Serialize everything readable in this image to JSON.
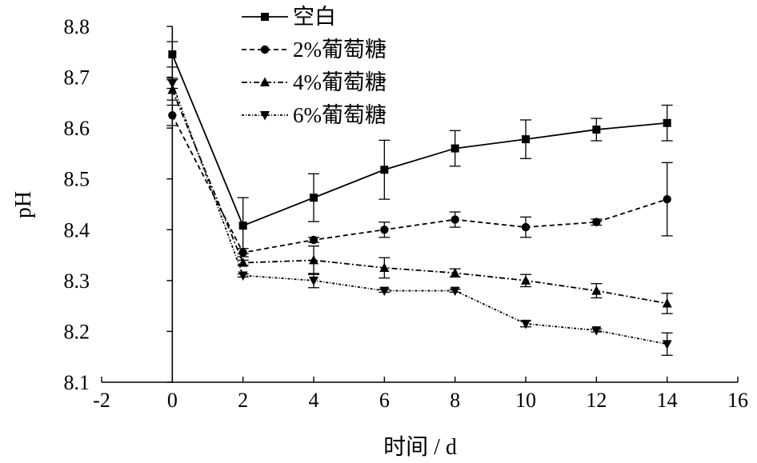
{
  "chart_data": {
    "type": "line",
    "xlabel": "时间 / d",
    "ylabel": "pH",
    "xlim": [
      -2,
      16
    ],
    "ylim": [
      8.1,
      8.8
    ],
    "xticks": [
      -2,
      0,
      2,
      4,
      6,
      8,
      10,
      12,
      14,
      16
    ],
    "yticks": [
      8.1,
      8.2,
      8.3,
      8.4,
      8.5,
      8.6,
      8.7,
      8.8
    ],
    "xtick_labels": [
      "-2",
      "0",
      "2",
      "4",
      "6",
      "8",
      "10",
      "12",
      "14",
      "16"
    ],
    "ytick_labels": [
      "8.1",
      "8.2",
      "8.3",
      "8.4",
      "8.5",
      "8.6",
      "8.7",
      "8.8"
    ],
    "grid": false,
    "legend_position": "top-center",
    "x": [
      0,
      2,
      4,
      6,
      8,
      10,
      12,
      14
    ],
    "series": [
      {
        "name": "空白",
        "marker": "square",
        "line": "solid",
        "values": [
          8.745,
          8.408,
          8.463,
          8.518,
          8.56,
          8.578,
          8.597,
          8.61
        ],
        "errors": [
          0.025,
          0.055,
          0.047,
          0.058,
          0.035,
          0.038,
          0.022,
          0.035
        ]
      },
      {
        "name": "2%葡萄糖",
        "marker": "circle",
        "line": "dashed",
        "values": [
          8.625,
          8.355,
          8.38,
          8.4,
          8.42,
          8.405,
          8.415,
          8.46
        ],
        "errors": [
          0.02,
          0.008,
          0.005,
          0.015,
          0.015,
          0.02,
          0.006,
          0.072
        ]
      },
      {
        "name": "4%葡萄糖",
        "marker": "triangle-up",
        "line": "dash-dot",
        "values": [
          8.675,
          8.335,
          8.34,
          8.325,
          8.315,
          8.3,
          8.28,
          8.255
        ],
        "errors": [
          0.02,
          0.005,
          0.028,
          0.02,
          0.008,
          0.012,
          0.014,
          0.02
        ]
      },
      {
        "name": "6%葡萄糖",
        "marker": "triangle-down",
        "line": "dotted",
        "values": [
          8.688,
          8.31,
          8.3,
          8.28,
          8.28,
          8.215,
          8.202,
          8.175
        ],
        "errors": [
          0.01,
          0.003,
          0.014,
          0.003,
          0.003,
          0.006,
          0.003,
          0.022
        ]
      }
    ]
  }
}
